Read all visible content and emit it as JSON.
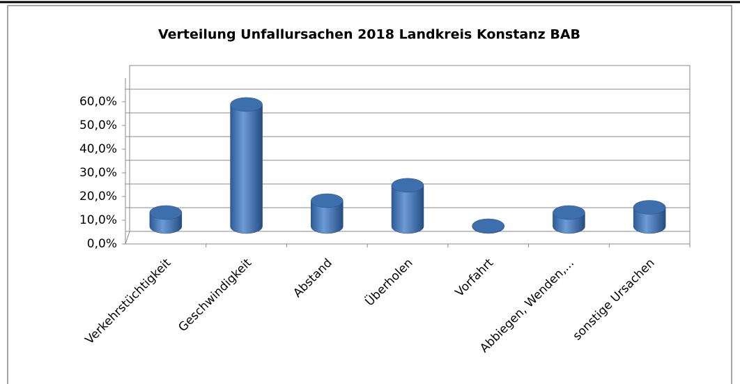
{
  "chart_data": {
    "type": "bar",
    "title": "Verteilung Unfallursachen 2018 Landkreis Konstanz BAB",
    "categories": [
      "Verkehrstüchtigkeit",
      "Geschwindigkeit",
      "Abstand",
      "Überholen",
      "Vorfahrt",
      "Abbiegen, Wenden,...",
      "sonstige Ursachen"
    ],
    "values": [
      5.9,
      51.5,
      10.9,
      17.4,
      0.3,
      5.9,
      8.1
    ],
    "color": "#4a7ebb",
    "ylim": [
      0,
      70
    ],
    "yticks": [
      {
        "value": 0,
        "label": "0,0%"
      },
      {
        "value": 10,
        "label": "10,0%"
      },
      {
        "value": 20,
        "label": "20,0%"
      },
      {
        "value": 30,
        "label": "30,0%"
      },
      {
        "value": 40,
        "label": "40,0%"
      },
      {
        "value": 50,
        "label": "50,0%"
      },
      {
        "value": 60,
        "label": "60,0%"
      }
    ],
    "grid": true
  }
}
